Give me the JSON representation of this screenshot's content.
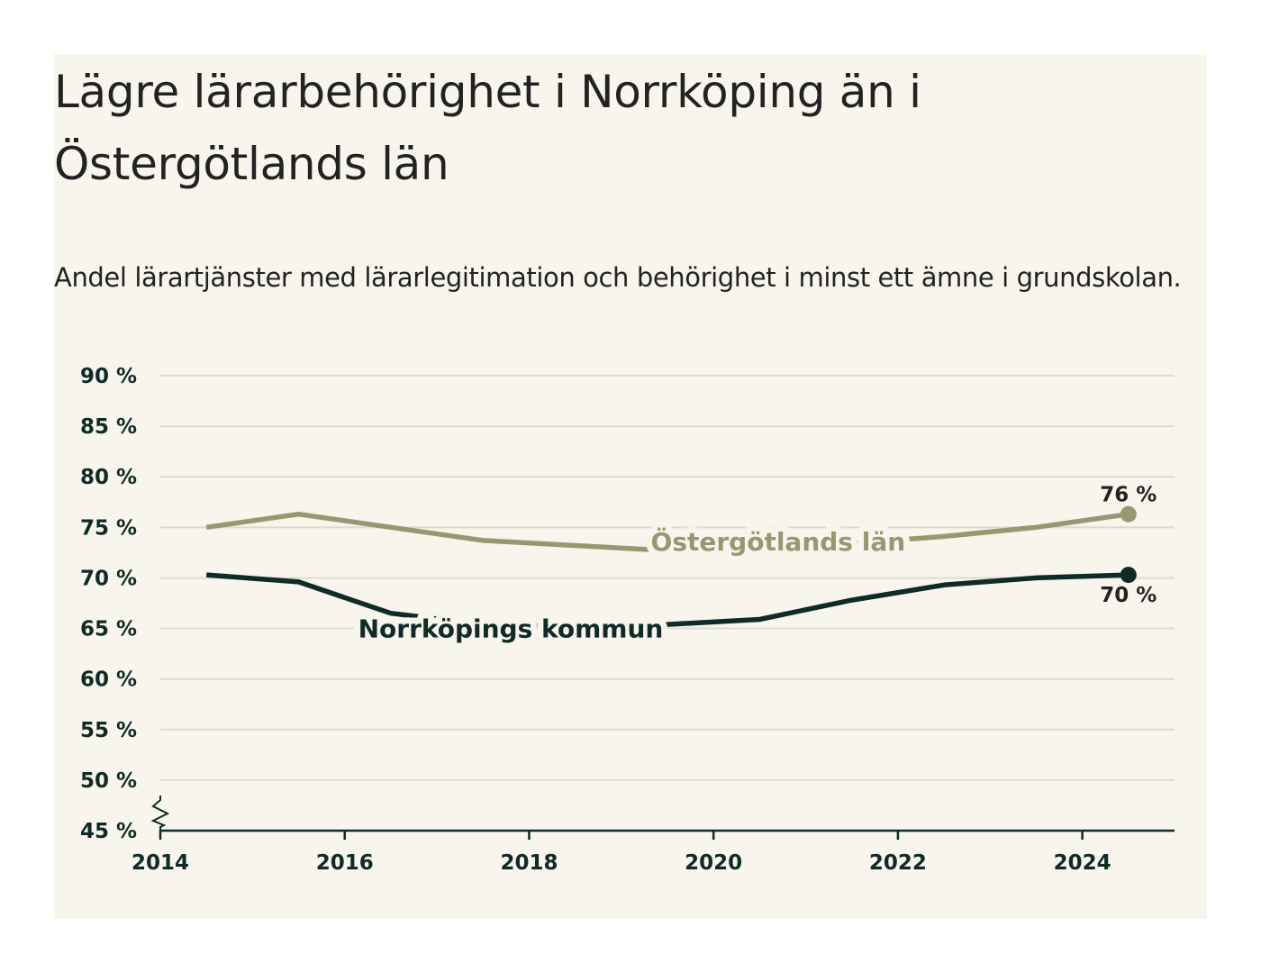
{
  "chart_data": {
    "type": "line",
    "title": "Lägre lärarbehörighet i Norrköping än i Östergötlands län",
    "subtitle": "Andel lärartjänster med lärarlegitimation och behörighet i minst ett ämne i grundskolan.",
    "xlabel": "",
    "ylabel": "",
    "x": [
      2014.5,
      2015.5,
      2016.5,
      2017.5,
      2018.5,
      2019.5,
      2020.5,
      2021.5,
      2022.5,
      2023.5,
      2024.5
    ],
    "xlim": [
      2014,
      2025
    ],
    "ylim": [
      45,
      90
    ],
    "x_ticks": [
      2014,
      2016,
      2018,
      2020,
      2022,
      2024
    ],
    "x_tick_labels": [
      "2014",
      "2016",
      "2018",
      "2020",
      "2022",
      "2024"
    ],
    "y_ticks": [
      45,
      50,
      55,
      60,
      65,
      70,
      75,
      80,
      85,
      90
    ],
    "y_tick_labels": [
      "45 %",
      "50 %",
      "55 %",
      "60 %",
      "65 %",
      "70 %",
      "75 %",
      "80 %",
      "85 %",
      "90 %"
    ],
    "grid": true,
    "axis_break": true,
    "series": [
      {
        "name": "Östergötlands län",
        "color": "#9b9672",
        "values": [
          75.0,
          76.3,
          75.0,
          73.7,
          73.2,
          72.7,
          73.0,
          73.4,
          74.1,
          75.0,
          76.3
        ],
        "end_label": "76 %",
        "label_at": 2020.7,
        "label_value": 73.6
      },
      {
        "name": "Norrköpings kommun",
        "color": "#0f2a27",
        "values": [
          70.3,
          69.6,
          66.5,
          65.4,
          65.2,
          65.4,
          65.9,
          67.8,
          69.3,
          70.0,
          70.3
        ],
        "end_label": "70 %",
        "label_at": 2017.8,
        "label_value": 65.0
      }
    ]
  }
}
